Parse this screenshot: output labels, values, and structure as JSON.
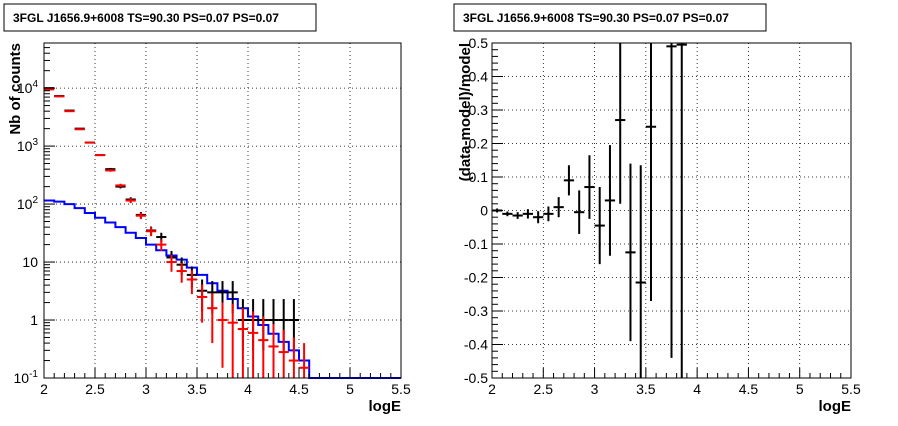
{
  "chart_data": [
    {
      "type": "line",
      "title": "3FGL J1656.9+6008 TS=90.30 PS=0.07 PS=0.07",
      "xlabel": "logE",
      "ylabel": "Nb of counts",
      "xlim": [
        2,
        5.5
      ],
      "ylim": [
        0.1,
        60000
      ],
      "yscale": "log",
      "grid": true,
      "x_ticks": [
        "2",
        "2.5",
        "3",
        "3.5",
        "4",
        "4.5",
        "5",
        "5.5"
      ],
      "y_ticks": [
        {
          "value": 0.1,
          "base": "10",
          "exp": "-1",
          "text": ""
        },
        {
          "value": 1,
          "base": "1",
          "exp": "",
          "text": "1"
        },
        {
          "value": 10,
          "base": "10",
          "exp": "",
          "text": "10"
        },
        {
          "value": 100,
          "base": "10",
          "exp": "2",
          "text": ""
        },
        {
          "value": 1000,
          "base": "10",
          "exp": "3",
          "text": ""
        },
        {
          "value": 10000,
          "base": "10",
          "exp": "4",
          "text": ""
        }
      ],
      "series": [
        {
          "kind": "step",
          "color": "#0000ff",
          "bin_width": 0.1,
          "x": [
            2.05,
            2.15,
            2.25,
            2.35,
            2.45,
            2.55,
            2.65,
            2.75,
            2.85,
            2.95,
            3.05,
            3.15,
            3.25,
            3.35,
            3.45,
            3.55,
            3.65,
            3.75,
            3.85,
            3.95,
            4.05,
            4.15,
            4.25,
            4.35,
            4.45,
            4.55,
            4.65,
            4.75,
            4.85,
            4.95,
            5.05,
            5.15,
            5.25,
            5.35,
            5.45
          ],
          "y": [
            115,
            110,
            100,
            85,
            70,
            58,
            48,
            40,
            32,
            26,
            20,
            16,
            13,
            11,
            8,
            6,
            4.3,
            3.2,
            2.3,
            1.6,
            1.15,
            0.82,
            0.58,
            0.42,
            0.3,
            0.2,
            0.1,
            0.1,
            0.1,
            0.1,
            0.1,
            0.1,
            0.1,
            0.1,
            0.1
          ]
        },
        {
          "kind": "errorbar",
          "color": "#000000",
          "bin_width": 0.1,
          "x": [
            2.05,
            2.15,
            2.25,
            2.35,
            2.45,
            2.55,
            2.65,
            2.75,
            2.85,
            2.95,
            3.05,
            3.15,
            3.25,
            3.35,
            3.45,
            3.55,
            3.65,
            3.75,
            3.85,
            3.95,
            4.05,
            4.15,
            4.25,
            4.35,
            4.45
          ],
          "y": [
            10000,
            7300,
            4100,
            2000,
            1150,
            700,
            400,
            200,
            120,
            65,
            35,
            27,
            12,
            9,
            6,
            3.2,
            3,
            3,
            3,
            1,
            1,
            1,
            1,
            1,
            1
          ],
          "err_lo": [
            100,
            85,
            64,
            45,
            34,
            26,
            20,
            14,
            11,
            8,
            6,
            5,
            3.5,
            3,
            2.4,
            1.8,
            1.7,
            1.7,
            1.7,
            0.7,
            0.7,
            0.7,
            0.7,
            0.7,
            0.7
          ],
          "err_hi": [
            100,
            85,
            64,
            45,
            34,
            26,
            20,
            14,
            11,
            8,
            6,
            5,
            3.5,
            3,
            2.4,
            1.8,
            1.7,
            1.7,
            1.7,
            1.3,
            1.3,
            1.3,
            1.3,
            1.3,
            1.3
          ]
        },
        {
          "kind": "errorbar",
          "color": "#ff0000",
          "bin_width": 0.1,
          "x": [
            2.05,
            2.15,
            2.25,
            2.35,
            2.45,
            2.55,
            2.65,
            2.75,
            2.85,
            2.95,
            3.05,
            3.15,
            3.25,
            3.35,
            3.45,
            3.55,
            3.65,
            3.75,
            3.85,
            3.95,
            4.05,
            4.15,
            4.25,
            4.35,
            4.45,
            4.55
          ],
          "y": [
            9500,
            7200,
            4000,
            1950,
            1150,
            700,
            380,
            210,
            115,
            63,
            34,
            20,
            10,
            7,
            5,
            2.5,
            1.6,
            1.0,
            0.9,
            0.7,
            0.6,
            0.45,
            0.35,
            0.28,
            0.2,
            0.15
          ],
          "err_lo": [
            97,
            85,
            63,
            44,
            34,
            26,
            19,
            14,
            11,
            8,
            6,
            4.5,
            3.2,
            2.6,
            2.2,
            1.6,
            1.2,
            0.85,
            0.8,
            0.6,
            0.5,
            0.4,
            0.3,
            0.24,
            0.17,
            0.13
          ],
          "err_hi": [
            97,
            85,
            63,
            44,
            34,
            26,
            19,
            14,
            11,
            8,
            6,
            4.5,
            3.2,
            2.6,
            2.2,
            1.6,
            1.3,
            1.0,
            1.0,
            0.9,
            0.8,
            0.7,
            0.5,
            0.4,
            0.3,
            0.25
          ]
        }
      ]
    },
    {
      "type": "scatter",
      "title": "3FGL J1656.9+6008 TS=90.30 PS=0.07 PS=0.07",
      "xlabel": "logE",
      "ylabel": "(data-model)/model",
      "xlim": [
        2,
        5.5
      ],
      "ylim": [
        -0.5,
        0.5
      ],
      "grid": true,
      "x_ticks": [
        "2",
        "2.5",
        "3",
        "3.5",
        "4",
        "4.5",
        "5",
        "5.5"
      ],
      "y_ticks": [
        "-0.5",
        "-0.4",
        "-0.3",
        "-0.2",
        "-0.1",
        "0",
        "0.1",
        "0.2",
        "0.3",
        "0.4",
        "0.5"
      ],
      "series": [
        {
          "kind": "errorbar",
          "color": "#000000",
          "bin_width": 0.1,
          "x": [
            2.05,
            2.15,
            2.25,
            2.35,
            2.45,
            2.55,
            2.65,
            2.75,
            2.85,
            2.95,
            3.05,
            3.15,
            3.25,
            3.35,
            3.45,
            3.55,
            3.75,
            3.85
          ],
          "y": [
            0,
            -0.01,
            -0.015,
            -0.01,
            -0.02,
            -0.01,
            0.01,
            0.09,
            -0.005,
            0.07,
            -0.045,
            0.03,
            0.27,
            -0.125,
            -0.215,
            0.25,
            0.49,
            0.495
          ],
          "err": [
            0.006,
            0.007,
            0.01,
            0.014,
            0.018,
            0.022,
            0.03,
            0.045,
            0.065,
            0.095,
            0.115,
            0.165,
            0.25,
            0.265,
            0.35,
            0.52,
            0.93,
            1.1
          ]
        }
      ]
    }
  ]
}
